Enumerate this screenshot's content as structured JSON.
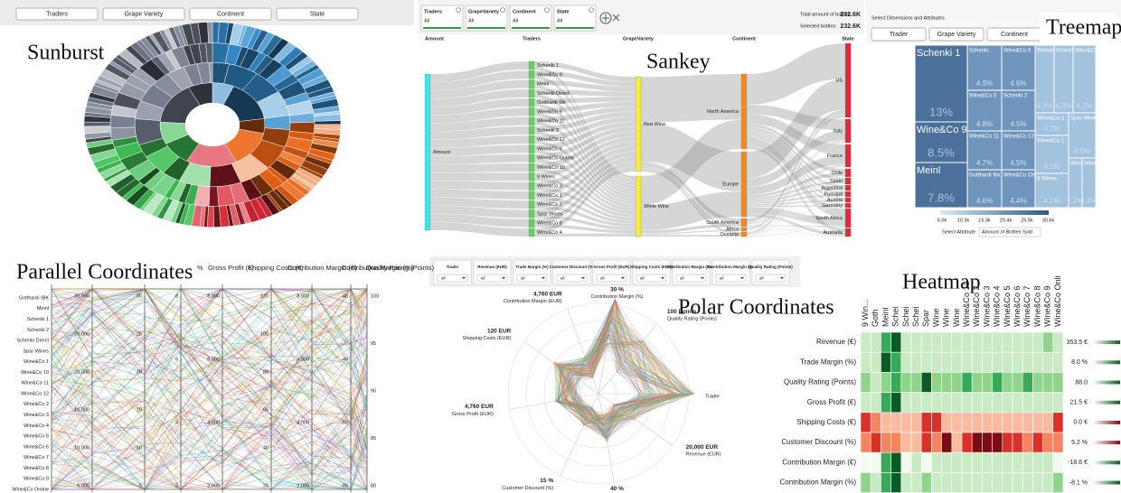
{
  "sunburst": {
    "title": "Sunburst",
    "buttons": [
      "Traders",
      "Grape Variety",
      "Continent",
      "State"
    ]
  },
  "sankey": {
    "title": "Sankey",
    "filters": [
      {
        "label": "Traders",
        "value": "All"
      },
      {
        "label": "GrapeVariety",
        "value": "All"
      },
      {
        "label": "Continent",
        "value": "All"
      },
      {
        "label": "State",
        "value": "All"
      }
    ],
    "totals": [
      {
        "label": "Total amount of bottles:",
        "value": "232.6K"
      },
      {
        "label": "Selected bottles:",
        "value": "232.6K"
      }
    ],
    "columns": [
      "Amount",
      "Traders",
      "GrapeVariety",
      "Continent",
      "State"
    ],
    "amount": [
      "Amount"
    ],
    "traders": [
      "Schenki 1",
      "Wine&Co 9",
      "Meinl",
      "Schenki Direct",
      "Gotthardi Ibk",
      "Wine&Co 5",
      "Wine&Co 11",
      "Schenki 2",
      "Wine&Co 12",
      "Wine&Co 6",
      "Wine&Co Online",
      "Wine&Co 10",
      "9 Wines",
      "Wine&Co 3",
      "Wine&Co 1",
      "Wine&Co 2",
      "Spar Wines",
      "Wine&Co 8",
      "Wine&Co 4"
    ],
    "grape": [
      "Red Wine",
      "White Wine"
    ],
    "continents": [
      "North America",
      "Europe",
      "South America",
      "Africa",
      "Oceania"
    ],
    "states": [
      "US",
      "Italy",
      "France",
      "Chile",
      "Spain",
      "Argentina",
      "Portugal",
      "Austria",
      "Germany",
      "South Africa",
      "Australia"
    ]
  },
  "treemap": {
    "title": "Treemap",
    "header": "Select Dimensions and Attributes",
    "buttons": [
      "Trader",
      "Grape Variety",
      "Continent"
    ],
    "cells": [
      {
        "label": "Schenki 1",
        "value": "13%"
      },
      {
        "label": "Wine&Co 9",
        "value": "8.5%"
      },
      {
        "label": "Meinl",
        "value": "7.8%"
      },
      {
        "label": "Schenki...",
        "value": "4.9%"
      },
      {
        "label": "Wine&Co 5",
        "value": "4.8%"
      },
      {
        "label": "Wine&Co 11",
        "value": "4.7%"
      },
      {
        "label": "Gotthardi Ibk",
        "value": "4.6%"
      },
      {
        "label": "Wine&Co 6",
        "value": "4.6%"
      },
      {
        "label": "Schenki 2",
        "value": "4.5%"
      },
      {
        "label": "Wine&Co 12",
        "value": "4.5%"
      },
      {
        "label": "Wine&Co Online",
        "value": "4.4%"
      },
      {
        "label": "Wine&Co 3",
        "value": "4.3%"
      },
      {
        "label": "Wine&Co 10",
        "value": "4.3%"
      },
      {
        "label": "Wine&Co 7",
        "value": "4.2%"
      },
      {
        "label": "Wine&Co 2",
        "value": "4.1%"
      },
      {
        "label": "Spar Wines",
        "value": "4.0%"
      },
      {
        "label": "Wine&Co 1",
        "value": "4.1%"
      },
      {
        "label": "9 Wines",
        "value": "4.1%"
      },
      {
        "label": "Wine&Co 8",
        "value": "2.2%"
      },
      {
        "label": "Wine&Co 4",
        "value": "2.2%"
      }
    ],
    "legend_ticks": [
      "5.0k",
      "10.3k",
      "15.3k",
      "20.4k",
      "25.5k",
      "30.6k"
    ],
    "attribute_label": "Select Attribute",
    "attribute": "Amount of Bottles Sold"
  },
  "parallel": {
    "title": "Parallel Coordinates",
    "headers": [
      "%",
      "Gross Profit (€)",
      "Shipping Costs (€)",
      "Contribution Margin (€)",
      "Contribution Margin (%)",
      "Quality Rating (Points)"
    ],
    "traders": [
      "Gotthardi IBK",
      "Meinl",
      "Schenki 1",
      "Schenki 2",
      "Schenki Direct",
      "Spar Wines",
      "Wine&Co 1",
      "Wine&Co 10",
      "Wine&Co 11",
      "Wine&Co 12",
      "Wine&Co 2",
      "Wine&Co 3",
      "Wine&Co 4",
      "Wine&Co 5",
      "Wine&Co 6",
      "Wine&Co 7",
      "Wine&Co 8",
      "Wine&Co 9",
      "Wine&Co Online"
    ],
    "axis_ticks": [
      [
        "30,000",
        "25,000",
        "20,000",
        "15,000",
        "10,000",
        "5,000"
      ],
      [
        "30",
        "25",
        "20",
        "15",
        "10",
        "5"
      ],
      [
        "8",
        "6",
        "4",
        "2"
      ],
      [
        "8,000",
        "6,000",
        "4,000",
        "2,000"
      ],
      [
        "120",
        "100",
        "80",
        "60",
        "40",
        "20"
      ],
      [
        "8,000",
        "6,000",
        "4,000",
        "2,000"
      ],
      [
        "40",
        "-40",
        "-60",
        "-80"
      ],
      [
        "100",
        "95",
        "90",
        "85",
        "80"
      ]
    ]
  },
  "polar": {
    "title": "Polar Coordinates",
    "filters": [
      {
        "label": "Trader",
        "value": "all"
      },
      {
        "label": "Revenue (EUR)",
        "value": "all"
      },
      {
        "label": "Trade Margin (%)",
        "value": "all"
      },
      {
        "label": "Customer Discount (%)",
        "value": "all"
      },
      {
        "label": "Gross Profit (EUR)",
        "value": "all"
      },
      {
        "label": "Shipping Costs (EUR)",
        "value": "all"
      },
      {
        "label": "Contribution Margin (EUR)",
        "value": "all"
      },
      {
        "label": "Contribution Margin (%)",
        "value": "all"
      },
      {
        "label": "Quality Rating (Points)",
        "value": "all"
      }
    ],
    "spokes": [
      {
        "name": "Contribution Margin (%)",
        "value": "30 %"
      },
      {
        "name": "Quality Rating (Points)",
        "value": "100 Points"
      },
      {
        "name": "Trader"
      },
      {
        "name": "Revenue (EUR)",
        "value": "20,000 EUR"
      },
      {
        "name": "Trade Margin (%)",
        "value": "40 %"
      },
      {
        "name": "Customer Discount (%)",
        "value": "15 %"
      },
      {
        "name": "Gross Profit (EUR)",
        "value": "4,760 EUR"
      },
      {
        "name": "Shipping Costs (EUR)",
        "value": "120 EUR"
      },
      {
        "name": "Contribution Margin (EUR)",
        "value": "4,760 EUR"
      }
    ]
  },
  "heatmap": {
    "title": "Heatmap",
    "columns": [
      "9 Win...",
      "Goth",
      "Meinl",
      "Schei",
      "Schei",
      "Schei",
      "Spar",
      "Wine",
      "Wine",
      "Wine",
      "Wine&Co 12",
      "Wine&Co 2",
      "Wine&Co 3",
      "Wine&Co 4",
      "Wine&Co 5",
      "Wine&Co 6",
      "Wine&Co 7",
      "Wine&Co 8",
      "Wine&Co 9",
      "Wine&Co Onli"
    ],
    "rows": [
      {
        "label": "Revenue (€)",
        "value_label": "353.5 €",
        "palette": "green",
        "cells": [
          1,
          1,
          3,
          4,
          1,
          1,
          1,
          1,
          1,
          1,
          1,
          1,
          1,
          1,
          1,
          1,
          1,
          1,
          2,
          1
        ]
      },
      {
        "label": "Trade Margin (%)",
        "value_label": "8.0 %",
        "palette": "green",
        "cells": [
          1,
          1,
          4,
          3,
          1,
          1,
          1,
          1,
          1,
          1,
          1,
          1,
          1,
          1,
          1,
          1,
          1,
          1,
          1,
          1
        ]
      },
      {
        "label": "Quality Rating (Points)",
        "value_label": "88.0",
        "palette": "green",
        "cells": [
          2,
          1,
          2,
          3,
          2,
          2,
          4,
          2,
          2,
          2,
          3,
          2,
          2,
          3,
          2,
          2,
          3,
          2,
          2,
          2
        ]
      },
      {
        "label": "Gross Profit (€)",
        "value_label": "21.5 €",
        "palette": "green",
        "cells": [
          1,
          1,
          3,
          4,
          1,
          1,
          1,
          1,
          1,
          1,
          1,
          1,
          1,
          1,
          1,
          1,
          1,
          1,
          1,
          1
        ]
      },
      {
        "label": "Shipping Costs (€)",
        "value_label": "0.0 €",
        "palette": "red",
        "cells": [
          3,
          2,
          1,
          1,
          1,
          1,
          3,
          3,
          1,
          1,
          1,
          1,
          1,
          1,
          1,
          1,
          1,
          1,
          1,
          3
        ]
      },
      {
        "label": "Customer Discount (%)",
        "value_label": "5.2 %",
        "palette": "red",
        "cells": [
          2,
          3,
          2,
          2,
          1,
          1,
          3,
          2,
          4,
          1,
          3,
          4,
          4,
          4,
          3,
          3,
          2,
          3,
          2,
          2
        ]
      },
      {
        "label": "Contribution Margin (€)",
        "value_label": "-18.6 €",
        "palette": "green",
        "cells": [
          0,
          0,
          3,
          4,
          0,
          1,
          0,
          1,
          1,
          1,
          1,
          1,
          1,
          1,
          1,
          1,
          1,
          1,
          1,
          0
        ]
      },
      {
        "label": "Contribution Margin (%)",
        "value_label": "-8.1 %",
        "palette": "green",
        "cells": [
          2,
          1,
          3,
          4,
          1,
          1,
          2,
          1,
          1,
          1,
          1,
          1,
          1,
          1,
          1,
          1,
          1,
          1,
          1,
          2
        ]
      }
    ]
  }
}
